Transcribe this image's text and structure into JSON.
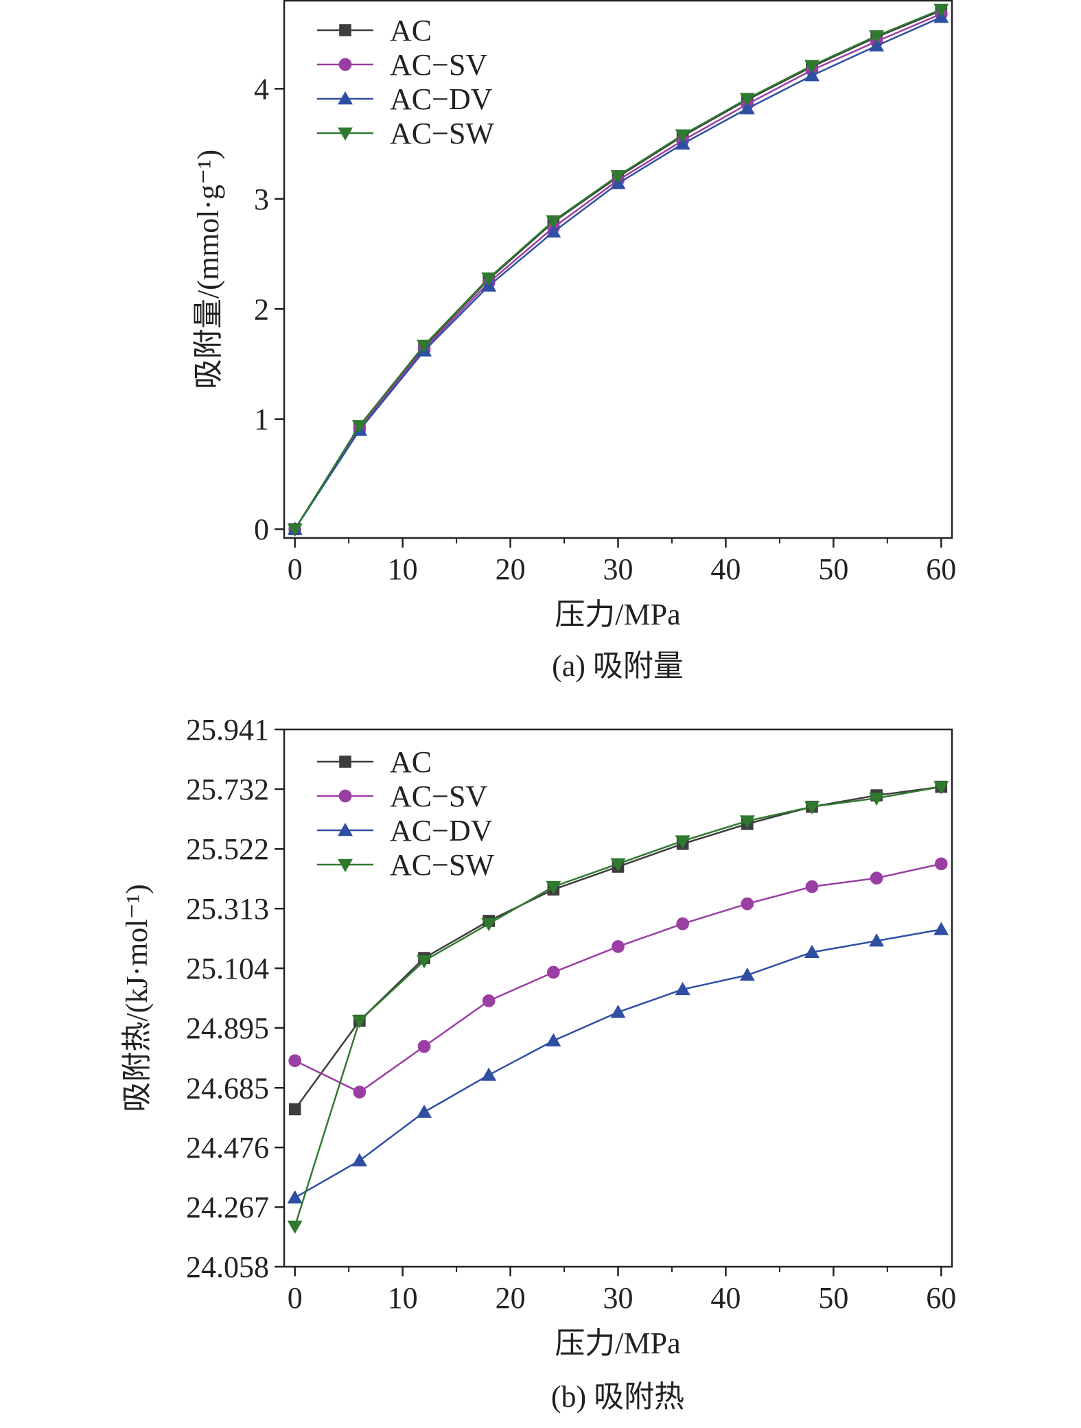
{
  "chart_data": [
    {
      "type": "line",
      "x": [
        0,
        6,
        12,
        18,
        24,
        30,
        36,
        42,
        48,
        54,
        60
      ],
      "xlabel": "压力/MPa",
      "ylabel": "吸附量/(mmol·g⁻¹)",
      "caption": "(a) 吸附量",
      "xlim": [
        -1,
        61
      ],
      "ylim": [
        -0.08,
        4.8
      ],
      "xticks": [
        0,
        10,
        20,
        30,
        40,
        50,
        60
      ],
      "xtick_labels": [
        "0",
        "10",
        "20",
        "30",
        "40",
        "50",
        "60"
      ],
      "yticks": [
        0,
        1,
        2,
        3,
        4
      ],
      "ytick_labels": [
        "0",
        "1",
        "2",
        "3",
        "4"
      ],
      "legend_position": "top-left",
      "grid": false,
      "series": [
        {
          "name": "AC",
          "color": "#3d3d3d",
          "marker": "square",
          "values": [
            0,
            0.93,
            1.66,
            2.27,
            2.79,
            3.2,
            3.57,
            3.9,
            4.2,
            4.47,
            4.71
          ]
        },
        {
          "name": "AC−SV",
          "color": "#9b3ea4",
          "marker": "circle",
          "values": [
            0,
            0.92,
            1.64,
            2.24,
            2.74,
            3.17,
            3.53,
            3.86,
            4.17,
            4.43,
            4.68
          ]
        },
        {
          "name": "AC−DV",
          "color": "#2f4fa3",
          "marker": "triangle-up",
          "values": [
            0,
            0.9,
            1.62,
            2.21,
            2.7,
            3.14,
            3.5,
            3.82,
            4.12,
            4.39,
            4.65
          ]
        },
        {
          "name": "AC−SW",
          "color": "#2f7a2f",
          "marker": "triangle-down",
          "values": [
            0,
            0.94,
            1.67,
            2.28,
            2.8,
            3.21,
            3.58,
            3.91,
            4.21,
            4.48,
            4.72
          ]
        }
      ]
    },
    {
      "type": "line",
      "x": [
        0,
        6,
        12,
        18,
        24,
        30,
        36,
        42,
        48,
        54,
        60
      ],
      "xlabel": "压力/MPa",
      "ylabel": "吸附热/(kJ·mol⁻¹)",
      "caption": "(b) 吸附热",
      "xlim": [
        -1,
        61
      ],
      "ylim": [
        24.058,
        25.941
      ],
      "xticks": [
        0,
        10,
        20,
        30,
        40,
        50,
        60
      ],
      "xtick_labels": [
        "0",
        "10",
        "20",
        "30",
        "40",
        "50",
        "60"
      ],
      "yticks": [
        24.058,
        24.267,
        24.476,
        24.685,
        24.895,
        25.104,
        25.313,
        25.522,
        25.732,
        25.941
      ],
      "ytick_labels": [
        "24.058",
        "24.267",
        "24.476",
        "24.685",
        "24.895",
        "25.104",
        "25.313",
        "25.522",
        "25.732",
        "25.941"
      ],
      "legend_position": "top-left",
      "grid": false,
      "series": [
        {
          "name": "AC",
          "color": "#3d3d3d",
          "marker": "square",
          "values": [
            24.61,
            24.92,
            25.14,
            25.27,
            25.38,
            25.46,
            25.54,
            25.61,
            25.67,
            25.71,
            25.74
          ]
        },
        {
          "name": "AC−SV",
          "color": "#9b3ea4",
          "marker": "circle",
          "values": [
            24.78,
            24.67,
            24.83,
            24.99,
            25.09,
            25.18,
            25.26,
            25.33,
            25.39,
            25.42,
            25.47
          ]
        },
        {
          "name": "AC−DV",
          "color": "#2f4fa3",
          "marker": "triangle-up",
          "values": [
            24.3,
            24.43,
            24.6,
            24.73,
            24.85,
            24.95,
            25.03,
            25.08,
            25.16,
            25.2,
            25.24
          ]
        },
        {
          "name": "AC−SW",
          "color": "#2f7a2f",
          "marker": "triangle-down",
          "values": [
            24.2,
            24.92,
            25.13,
            25.26,
            25.39,
            25.47,
            25.55,
            25.62,
            25.67,
            25.7,
            25.74
          ]
        }
      ]
    }
  ]
}
